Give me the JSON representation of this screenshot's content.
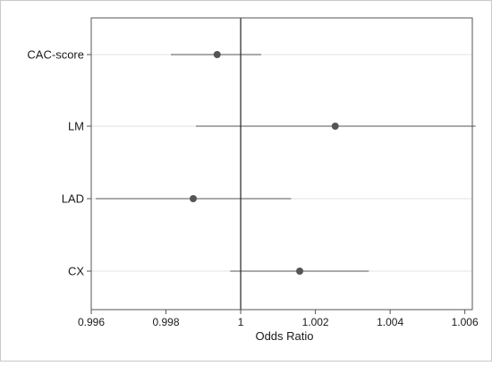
{
  "chart_data": {
    "type": "scatter",
    "subtype": "forest-plot",
    "title": "",
    "xlabel": "Odds Ratio",
    "ylabel": "",
    "xlim": [
      0.996,
      1.0062
    ],
    "x_ticks": [
      0.996,
      0.998,
      1,
      1.002,
      1.004,
      1.006
    ],
    "x_tick_labels": [
      "0.996",
      "0.998",
      "1",
      "1.002",
      "1.004",
      "1.006"
    ],
    "reference_line": 1,
    "grid": true,
    "legend": "none",
    "colors": {
      "marker": "#555555",
      "ci_line": "#777777",
      "reference": "#222222",
      "grid": "#e3e3e3",
      "border": "#555555",
      "outer_border": "#c9c9c9"
    },
    "rows": [
      {
        "label": "CAC-score",
        "estimate": 0.99937,
        "ci_low": 0.99813,
        "ci_high": 1.00055
      },
      {
        "label": "LM",
        "estimate": 1.00253,
        "ci_low": 0.9988,
        "ci_high": 1.00629
      },
      {
        "label": "LAD",
        "estimate": 0.99873,
        "ci_low": 0.99612,
        "ci_high": 1.00135
      },
      {
        "label": "CX",
        "estimate": 1.00158,
        "ci_low": 0.99972,
        "ci_high": 1.00343
      }
    ]
  }
}
